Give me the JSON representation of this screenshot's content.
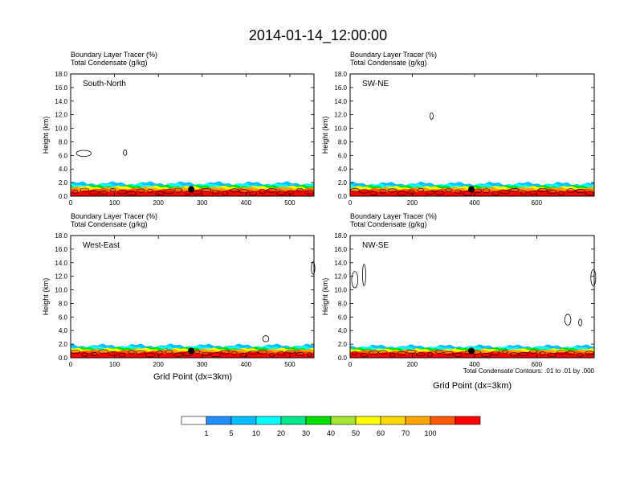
{
  "title": "2014-01-14_12:00:00",
  "panel_header_line1": "Boundary Layer Tracer   (%)",
  "panel_header_line2": "Total Condensate   (g/kg)",
  "ylabel": "Height (km)",
  "xlabel": "Grid Point (dx=3km)",
  "contour_note": "Total Condensate Contours: .01 to .01 by .000",
  "colors": {
    "colorbar": [
      "#ffffff",
      "#1e90ff",
      "#00bfff",
      "#00ffff",
      "#00e68a",
      "#00dd00",
      "#a0e632",
      "#ffff00",
      "#ffd700",
      "#ffa500",
      "#ff5a00",
      "#ff0000"
    ],
    "marker": "#000000"
  },
  "colorbar_labels": [
    "1",
    "5",
    "10",
    "20",
    "30",
    "40",
    "50",
    "60",
    "70",
    "100"
  ],
  "chart_data": [
    {
      "type": "heatmap",
      "name": "South-North",
      "x_ticks": [
        0,
        100,
        200,
        300,
        400,
        500
      ],
      "xlim": [
        0,
        555
      ],
      "y_ticks": [
        "0.0",
        "2.0",
        "4.0",
        "6.0",
        "8.0",
        "10.0",
        "12.0",
        "14.0",
        "16.0",
        "18.0"
      ],
      "ylim": [
        0,
        18
      ],
      "pbl_top_km": 1.9,
      "marker": {
        "x": 275,
        "y": 1.0
      },
      "contours": [
        {
          "x": 30,
          "y": 6.3,
          "rx": 17,
          "ry": 0.45
        },
        {
          "x": 124,
          "y": 6.4,
          "rx": 4,
          "ry": 0.4
        }
      ]
    },
    {
      "type": "heatmap",
      "name": "SW-NE",
      "x_ticks": [
        0,
        200,
        400,
        600
      ],
      "xlim": [
        0,
        785
      ],
      "y_ticks": [
        "0.0",
        "2.0",
        "4.0",
        "6.0",
        "8.0",
        "10.0",
        "12.0",
        "14.0",
        "16.0",
        "18.0"
      ],
      "ylim": [
        0,
        18
      ],
      "pbl_top_km": 1.85,
      "marker": {
        "x": 390,
        "y": 1.0
      },
      "contours": [
        {
          "x": 262,
          "y": 11.8,
          "rx": 4,
          "ry": 0.5
        }
      ]
    },
    {
      "type": "heatmap",
      "name": "West-East",
      "x_ticks": [
        0,
        100,
        200,
        300,
        400,
        500
      ],
      "xlim": [
        0,
        555
      ],
      "y_ticks": [
        "0.0",
        "2.0",
        "4.0",
        "6.0",
        "8.0",
        "10.0",
        "12.0",
        "14.0",
        "16.0",
        "18.0"
      ],
      "ylim": [
        0,
        18
      ],
      "pbl_top_km": 1.8,
      "marker": {
        "x": 275,
        "y": 1.0
      },
      "contours": [
        {
          "x": 445,
          "y": 2.8,
          "rx": 7,
          "ry": 0.45
        },
        {
          "x": 553,
          "y": 13.2,
          "rx": 4,
          "ry": 0.9
        }
      ]
    },
    {
      "type": "heatmap",
      "name": "NW-SE",
      "x_ticks": [
        0,
        200,
        400,
        600
      ],
      "xlim": [
        0,
        785
      ],
      "y_ticks": [
        "0.0",
        "2.0",
        "4.0",
        "6.0",
        "8.0",
        "10.0",
        "12.0",
        "14.0",
        "16.0",
        "18.0"
      ],
      "ylim": [
        0,
        18
      ],
      "pbl_top_km": 1.7,
      "marker": {
        "x": 390,
        "y": 1.0
      },
      "contours": [
        {
          "x": 15,
          "y": 11.5,
          "rx": 10,
          "ry": 1.2
        },
        {
          "x": 45,
          "y": 12.2,
          "rx": 5,
          "ry": 1.6
        },
        {
          "x": 700,
          "y": 5.6,
          "rx": 10,
          "ry": 0.8
        },
        {
          "x": 740,
          "y": 5.2,
          "rx": 3,
          "ry": 0.5
        },
        {
          "x": 782,
          "y": 11.8,
          "rx": 8,
          "ry": 1.2
        }
      ]
    }
  ]
}
